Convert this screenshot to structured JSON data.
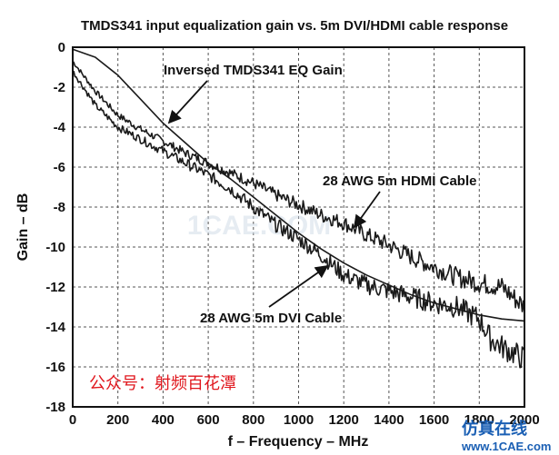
{
  "chart_data": {
    "type": "line",
    "title": "TMDS341 input equalization gain vs. 5m DVI/HDMI cable response",
    "xlabel": "f – Frequency – MHz",
    "ylabel": "Gain – dB",
    "xlim": [
      0,
      2000
    ],
    "ylim": [
      -18,
      0
    ],
    "x_ticks": [
      0,
      200,
      400,
      600,
      800,
      1000,
      1200,
      1400,
      1600,
      1800,
      2000
    ],
    "y_ticks": [
      0,
      -2,
      -4,
      -6,
      -8,
      -10,
      -12,
      -14,
      -16,
      -18
    ],
    "grid": true,
    "series": [
      {
        "name": "Inversed TMDS341 EQ Gain",
        "x": [
          0,
          100,
          200,
          300,
          400,
          500,
          600,
          700,
          800,
          900,
          1000,
          1100,
          1200,
          1300,
          1400,
          1500,
          1600,
          1700,
          1800,
          1900,
          2000
        ],
        "y": [
          -0.1,
          -0.5,
          -1.4,
          -2.6,
          -3.8,
          -4.8,
          -5.8,
          -6.6,
          -7.5,
          -8.4,
          -9.3,
          -10.1,
          -10.8,
          -11.4,
          -11.9,
          -12.4,
          -12.8,
          -13.1,
          -13.4,
          -13.6,
          -13.7
        ],
        "noise": 0
      },
      {
        "name": "28 AWG 5m HDMI Cable",
        "x": [
          0,
          100,
          200,
          300,
          400,
          500,
          600,
          700,
          800,
          900,
          1000,
          1100,
          1200,
          1300,
          1400,
          1500,
          1600,
          1700,
          1800,
          1900,
          2000
        ],
        "y": [
          -0.7,
          -2.2,
          -3.4,
          -4.1,
          -4.7,
          -5.3,
          -5.8,
          -6.3,
          -6.8,
          -7.4,
          -7.9,
          -8.4,
          -8.8,
          -9.4,
          -9.9,
          -10.5,
          -11.0,
          -11.5,
          -11.8,
          -12.0,
          -13.0
        ],
        "noise": 0.28
      },
      {
        "name": "28 AWG 5m DVI Cable",
        "x": [
          0,
          100,
          200,
          300,
          400,
          500,
          600,
          700,
          800,
          900,
          1000,
          1100,
          1200,
          1300,
          1400,
          1500,
          1600,
          1700,
          1800,
          1850,
          1900,
          2000
        ],
        "y": [
          -1.2,
          -2.9,
          -4.0,
          -4.6,
          -5.2,
          -5.8,
          -6.4,
          -7.1,
          -8.0,
          -8.9,
          -9.6,
          -10.4,
          -11.4,
          -11.9,
          -12.2,
          -12.5,
          -12.8,
          -13.0,
          -13.6,
          -14.6,
          -15.0,
          -15.6
        ],
        "noise": 0.32
      }
    ],
    "annotations": [
      {
        "text": "Inversed TMDS341 EQ Gain",
        "series": 0
      },
      {
        "text": "28 AWG 5m HDMI Cable",
        "series": 1
      },
      {
        "text": "28 AWG 5m DVI Cable",
        "series": 2
      }
    ]
  },
  "watermarks": {
    "wechat": "公众号：射频百花潭",
    "logo": "仿真在线",
    "url": "www.1CAE.com",
    "faint": "1CAE.COM"
  }
}
